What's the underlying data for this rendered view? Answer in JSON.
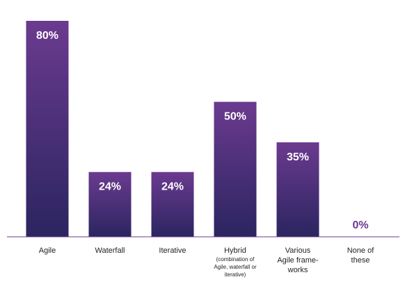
{
  "chart_data": {
    "type": "bar",
    "title": "",
    "xlabel": "",
    "ylabel": "",
    "ylim": [
      0,
      80
    ],
    "grid": false,
    "categories": [
      [
        "Agile"
      ],
      [
        "Waterfall"
      ],
      [
        "Iterative"
      ],
      [
        "Hybrid",
        "(combination of",
        "Agile, waterfall or",
        "iterative)"
      ],
      [
        "Various",
        "Agile frame-",
        "works"
      ],
      [
        "None of",
        "these"
      ]
    ],
    "values": [
      80,
      24,
      24,
      50,
      35,
      0
    ],
    "value_labels": [
      "80%",
      "24%",
      "24%",
      "50%",
      "35%",
      "0%"
    ]
  },
  "colors": {
    "bar_top": "#6b3a8f",
    "bar_bottom": "#2b2560",
    "value_text_on_bar": "#ffffff",
    "value_text_zero": "#6b3a8f",
    "baseline": "#6b3a8f"
  }
}
